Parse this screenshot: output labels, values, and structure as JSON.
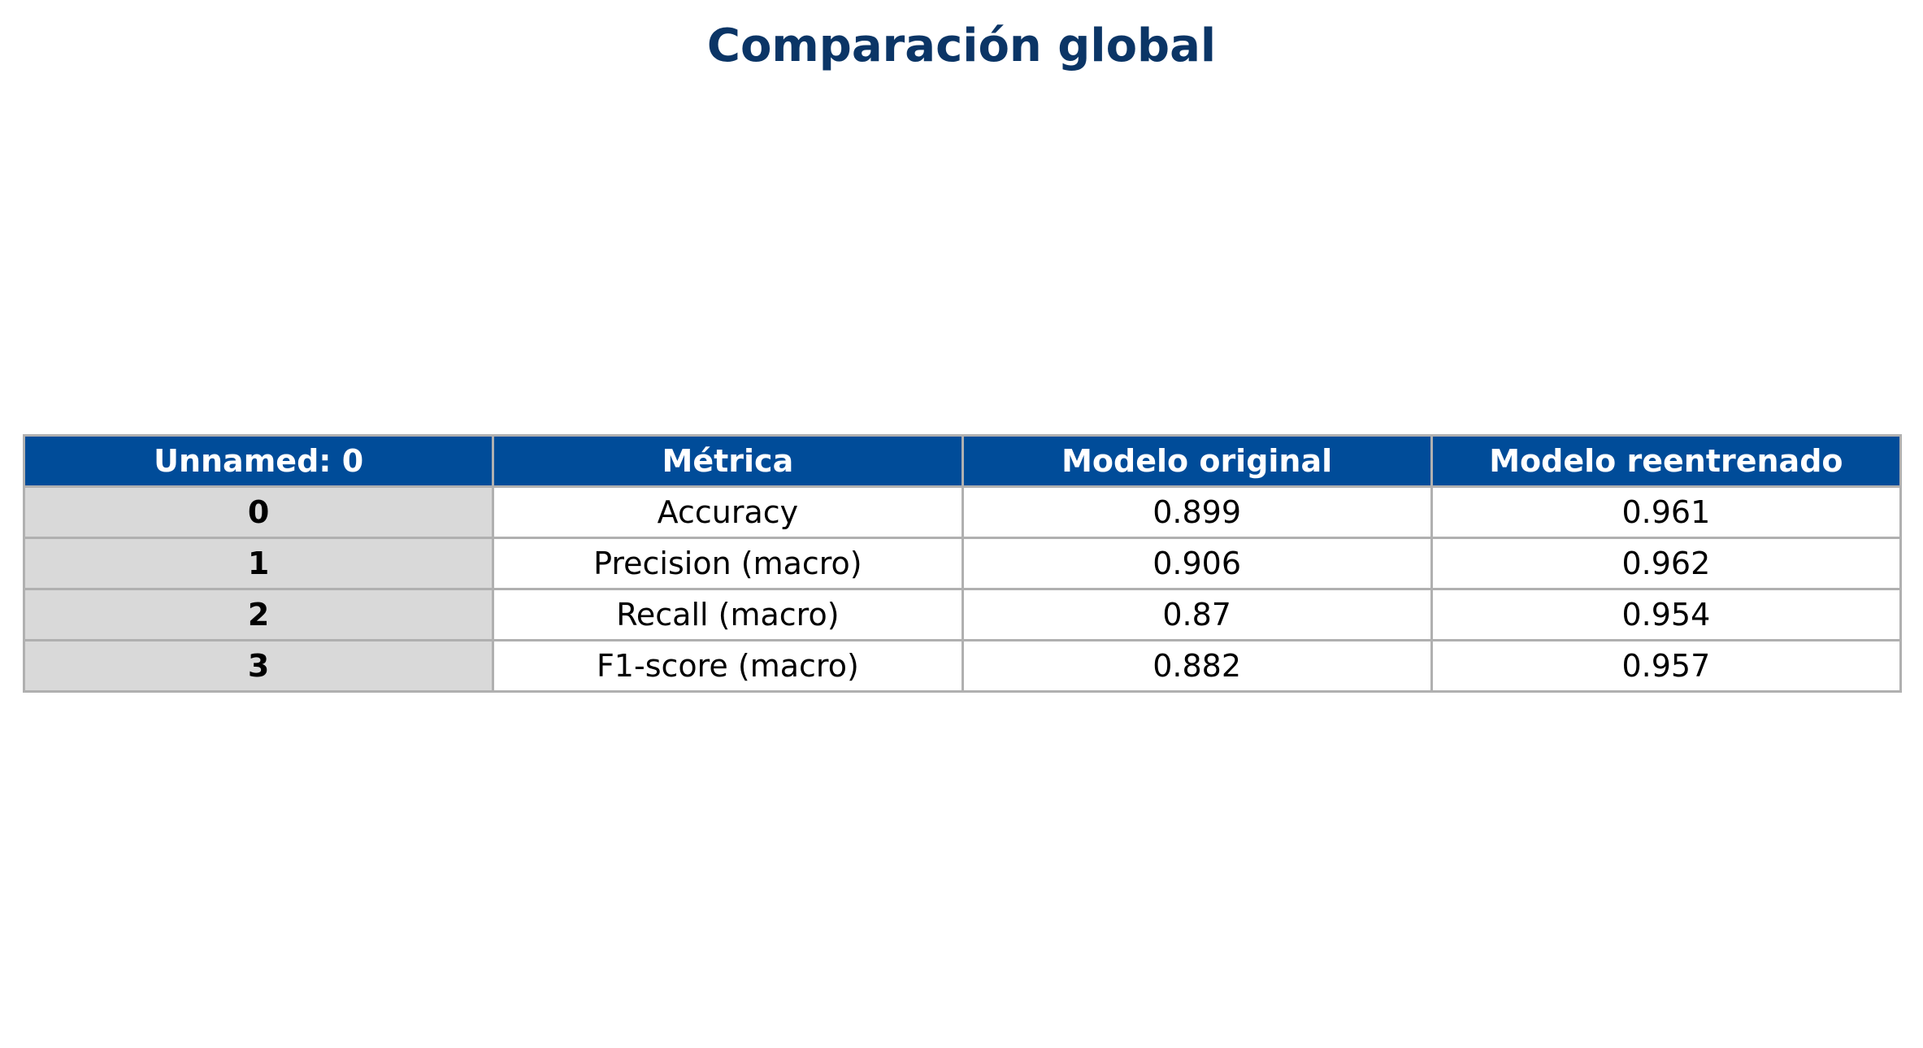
{
  "chart_data": {
    "type": "table",
    "title": "Comparación global",
    "columns": [
      "Unnamed: 0",
      "Métrica",
      "Modelo original",
      "Modelo reentrenado"
    ],
    "rows": [
      [
        "0",
        "Accuracy",
        "0.899",
        "0.961"
      ],
      [
        "1",
        "Precision (macro)",
        "0.906",
        "0.962"
      ],
      [
        "2",
        "Recall (macro)",
        "0.87",
        "0.954"
      ],
      [
        "3",
        "F1-score (macro)",
        "0.882",
        "0.957"
      ]
    ],
    "colors": {
      "header_bg": "#004c99",
      "header_text": "#ffffff",
      "index_bg": "#d9d9d9",
      "title": "#0b3566",
      "border": "#b0b0b0"
    }
  }
}
